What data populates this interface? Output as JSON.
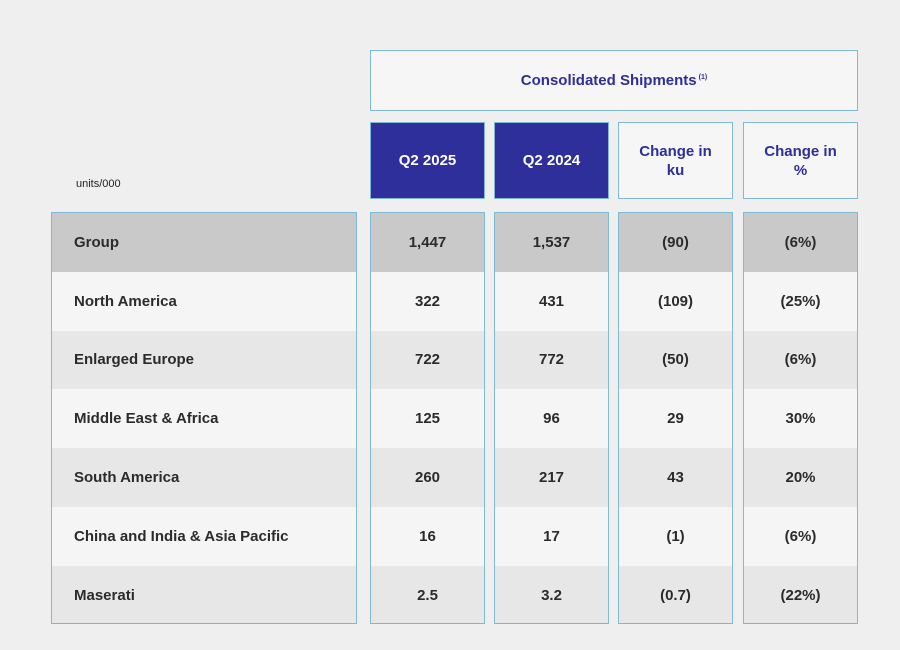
{
  "table": {
    "super_header": "Consolidated Shipments",
    "footnote_marker": "(1)",
    "units": "units/000",
    "columns": [
      "Q2 2025",
      "Q2 2024",
      "Change in ku",
      "Change in %"
    ],
    "rows": [
      {
        "label": "Group",
        "values": [
          "1,447",
          "1,537",
          "(90)",
          "(6%)"
        ]
      },
      {
        "label": "North America",
        "values": [
          "322",
          "431",
          "(109)",
          "(25%)"
        ]
      },
      {
        "label": "Enlarged Europe",
        "values": [
          "722",
          "772",
          "(50)",
          "(6%)"
        ]
      },
      {
        "label": "Middle East & Africa",
        "values": [
          "125",
          "96",
          "29",
          "30%"
        ]
      },
      {
        "label": "South America",
        "values": [
          "260",
          "217",
          "43",
          "20%"
        ]
      },
      {
        "label": "China and India & Asia Pacific",
        "values": [
          "16",
          "17",
          "(1)",
          "(6%)"
        ]
      },
      {
        "label": "Maserati",
        "values": [
          "2.5",
          "3.2",
          "(0.7)",
          "(22%)"
        ]
      }
    ]
  },
  "chart_data": {
    "type": "table",
    "title": "Consolidated Shipments",
    "units": "units/000",
    "columns": [
      "Q2 2025",
      "Q2 2024",
      "Change in ku",
      "Change in %"
    ],
    "rows": [
      {
        "label": "Group",
        "values": [
          1447,
          1537,
          -90,
          -6
        ]
      },
      {
        "label": "North America",
        "values": [
          322,
          431,
          -109,
          -25
        ]
      },
      {
        "label": "Enlarged Europe",
        "values": [
          722,
          772,
          -50,
          -6
        ]
      },
      {
        "label": "Middle East & Africa",
        "values": [
          125,
          96,
          29,
          30
        ]
      },
      {
        "label": "South America",
        "values": [
          260,
          217,
          43,
          20
        ]
      },
      {
        "label": "China and India & Asia Pacific",
        "values": [
          16,
          17,
          -1,
          -6
        ]
      },
      {
        "label": "Maserati",
        "values": [
          2.5,
          3.2,
          -0.7,
          -22
        ]
      }
    ]
  }
}
